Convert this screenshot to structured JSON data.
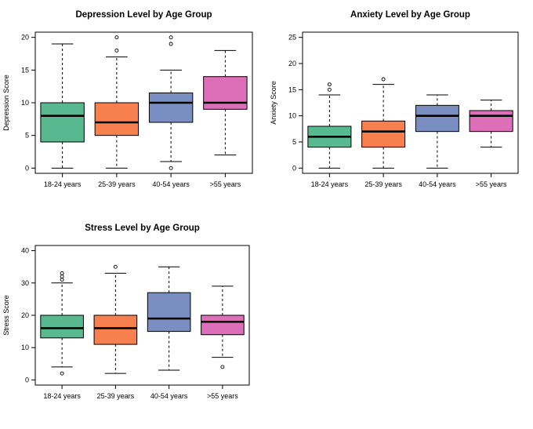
{
  "palette": {
    "group_colors": [
      "#58b890",
      "#f8804e",
      "#7b8ec2",
      "#dd6fb8"
    ],
    "median": "#000000",
    "axis": "#000000",
    "background": "#ffffff"
  },
  "chart_data": [
    {
      "type": "boxplot",
      "title": "Depression Level by Age Group",
      "xlabel": "",
      "ylabel": "Depression Score",
      "categories": [
        "18-24 years",
        "25-39 years",
        "40-54 years",
        ">55 years"
      ],
      "ylim": [
        0,
        20
      ],
      "yticks": [
        0,
        5,
        10,
        15,
        20
      ],
      "boxes": [
        {
          "whisker_low": 0,
          "q1": 4,
          "median": 8,
          "q3": 10,
          "whisker_high": 19,
          "outliers": []
        },
        {
          "whisker_low": 0,
          "q1": 5,
          "median": 7,
          "q3": 10,
          "whisker_high": 17,
          "outliers": [
            18,
            20
          ]
        },
        {
          "whisker_low": 1,
          "q1": 7,
          "median": 10,
          "q3": 11.5,
          "whisker_high": 15,
          "outliers": [
            0,
            19,
            20
          ]
        },
        {
          "whisker_low": 2,
          "q1": 9,
          "median": 10,
          "q3": 14,
          "whisker_high": 18,
          "outliers": []
        }
      ]
    },
    {
      "type": "boxplot",
      "title": "Anxiety Level by Age Group",
      "xlabel": "",
      "ylabel": "Anxiety Score",
      "categories": [
        "18-24 years",
        "25-39 years",
        "40-54 years",
        ">55 years"
      ],
      "ylim": [
        0,
        25
      ],
      "yticks": [
        0,
        5,
        10,
        15,
        20,
        25
      ],
      "boxes": [
        {
          "whisker_low": 0,
          "q1": 4,
          "median": 6,
          "q3": 8,
          "whisker_high": 14,
          "outliers": [
            15,
            16
          ]
        },
        {
          "whisker_low": 0,
          "q1": 4,
          "median": 7,
          "q3": 9,
          "whisker_high": 16,
          "outliers": [
            17
          ]
        },
        {
          "whisker_low": 0,
          "q1": 7,
          "median": 10,
          "q3": 12,
          "whisker_high": 14,
          "outliers": []
        },
        {
          "whisker_low": 4,
          "q1": 7,
          "median": 10,
          "q3": 11,
          "whisker_high": 13,
          "outliers": []
        }
      ]
    },
    {
      "type": "boxplot",
      "title": "Stress Level by Age Group",
      "xlabel": "",
      "ylabel": "Stress Score",
      "categories": [
        "18-24 years",
        "25-39 years",
        "40-54 years",
        ">55 years"
      ],
      "ylim": [
        0,
        40
      ],
      "yticks": [
        0,
        10,
        20,
        30,
        40
      ],
      "boxes": [
        {
          "whisker_low": 4,
          "q1": 13,
          "median": 16,
          "q3": 20,
          "whisker_high": 30,
          "outliers": [
            2,
            31,
            32,
            33
          ]
        },
        {
          "whisker_low": 2,
          "q1": 11,
          "median": 16,
          "q3": 20,
          "whisker_high": 33,
          "outliers": [
            35
          ]
        },
        {
          "whisker_low": 3,
          "q1": 15,
          "median": 19,
          "q3": 27,
          "whisker_high": 35,
          "outliers": []
        },
        {
          "whisker_low": 7,
          "q1": 14,
          "median": 18,
          "q3": 20,
          "whisker_high": 29,
          "outliers": [
            4
          ]
        }
      ]
    }
  ]
}
